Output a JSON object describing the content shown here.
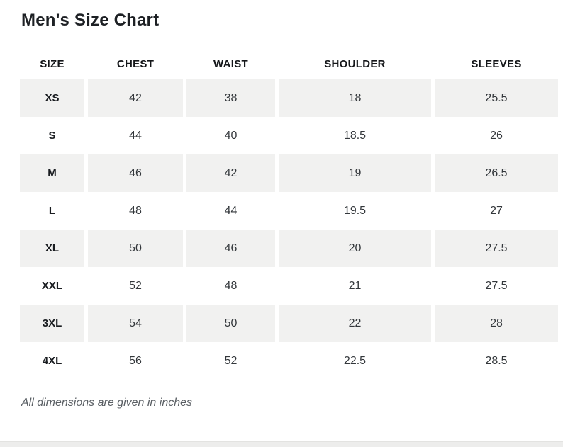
{
  "page": {
    "title": "Men's Size Chart",
    "footnote": "All dimensions are given in inches"
  },
  "chart_data": {
    "type": "table",
    "title": "Men's Size Chart",
    "columns": [
      "SIZE",
      "CHEST",
      "WAIST",
      "SHOULDER",
      "SLEEVES"
    ],
    "rows": [
      [
        "XS",
        "42",
        "38",
        "18",
        "25.5"
      ],
      [
        "S",
        "44",
        "40",
        "18.5",
        "26"
      ],
      [
        "M",
        "46",
        "42",
        "19",
        "26.5"
      ],
      [
        "L",
        "48",
        "44",
        "19.5",
        "27"
      ],
      [
        "XL",
        "50",
        "46",
        "20",
        "27.5"
      ],
      [
        "XXL",
        "52",
        "48",
        "21",
        "27.5"
      ],
      [
        "3XL",
        "54",
        "50",
        "22",
        "28"
      ],
      [
        "4XL",
        "56",
        "52",
        "22.5",
        "28.5"
      ]
    ],
    "units": "inches"
  },
  "colors": {
    "stripe_bg": "#f1f1f0",
    "title_text": "#1d2024",
    "cell_text": "#33373b",
    "footnote_text": "#5a5f64",
    "bottom_strip_bg": "#ededec",
    "bottom_strip_border": "#e3e3e1"
  }
}
